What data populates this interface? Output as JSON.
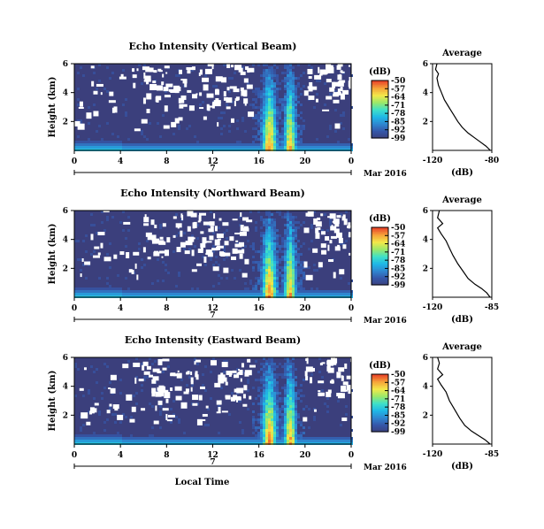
{
  "colors": {
    "background": "#3b3f7c",
    "colormap": [
      "#3b3f7c",
      "#3556a8",
      "#2f86d0",
      "#1fb8e6",
      "#3fe0c8",
      "#9ae86a",
      "#f2e84a",
      "#f6a43a",
      "#e8452a"
    ]
  },
  "figure": {
    "date_label": "Mar 2016",
    "day_label": "7",
    "xlabel_bottom": "Local Time"
  },
  "chart_data": [
    {
      "type": "heatmap",
      "title": "Echo Intensity (Vertical Beam)",
      "ylabel": "Height (km)",
      "xlabel": "",
      "x_ticks": [
        "0",
        "4",
        "8",
        "12",
        "16",
        "20",
        "0"
      ],
      "y_ticks": [
        "2",
        "4",
        "6"
      ],
      "xlim": [
        0,
        24
      ],
      "ylim": [
        0,
        6
      ],
      "colorbar": {
        "unit": "(dB)",
        "ticks": [
          "-50",
          "-57",
          "-64",
          "-71",
          "-78",
          "-85",
          "-92",
          "-99"
        ],
        "range": [
          -99,
          -50
        ]
      },
      "profile": {
        "title": "Average",
        "xlabel": "(dB)",
        "x_ticks": [
          "-120",
          "-80"
        ],
        "xlim": [
          -120,
          -80
        ],
        "y_ticks": [
          "2",
          "4",
          "6"
        ],
        "ylim": [
          0,
          6
        ],
        "points": [
          [
            -81,
            0.0
          ],
          [
            -84,
            0.3
          ],
          [
            -88,
            0.6
          ],
          [
            -92,
            0.9
          ],
          [
            -96,
            1.2
          ],
          [
            -100,
            1.6
          ],
          [
            -103,
            2.0
          ],
          [
            -106,
            2.5
          ],
          [
            -109,
            3.0
          ],
          [
            -112,
            3.5
          ],
          [
            -114,
            4.0
          ],
          [
            -116,
            4.5
          ],
          [
            -117,
            5.0
          ],
          [
            -116,
            5.3
          ],
          [
            -118,
            5.6
          ],
          [
            -117,
            6.0
          ]
        ]
      }
    },
    {
      "type": "heatmap",
      "title": "Echo Intensity (Northward Beam)",
      "ylabel": "Height (km)",
      "xlabel": "",
      "x_ticks": [
        "0",
        "4",
        "8",
        "12",
        "16",
        "20",
        "0"
      ],
      "y_ticks": [
        "2",
        "4",
        "6"
      ],
      "xlim": [
        0,
        24
      ],
      "ylim": [
        0,
        6
      ],
      "colorbar": {
        "unit": "(dB)",
        "ticks": [
          "-50",
          "-57",
          "-64",
          "-71",
          "-78",
          "-85",
          "-92",
          "-99"
        ],
        "range": [
          -99,
          -50
        ]
      },
      "profile": {
        "title": "Average",
        "xlabel": "(dB)",
        "x_ticks": [
          "-120",
          "-85"
        ],
        "xlim": [
          -120,
          -85
        ],
        "y_ticks": [
          "2",
          "4",
          "6"
        ],
        "ylim": [
          0,
          6
        ],
        "points": [
          [
            -86,
            0.0
          ],
          [
            -88,
            0.3
          ],
          [
            -91,
            0.6
          ],
          [
            -95,
            0.9
          ],
          [
            -99,
            1.3
          ],
          [
            -102,
            1.8
          ],
          [
            -105,
            2.3
          ],
          [
            -108,
            2.9
          ],
          [
            -110,
            3.4
          ],
          [
            -112,
            3.9
          ],
          [
            -115,
            4.4
          ],
          [
            -117,
            4.8
          ],
          [
            -114,
            5.1
          ],
          [
            -117,
            5.5
          ],
          [
            -116,
            6.0
          ]
        ]
      }
    },
    {
      "type": "heatmap",
      "title": "Echo Intensity (Eastward Beam)",
      "ylabel": "Height (km)",
      "xlabel": "Local Time",
      "x_ticks": [
        "0",
        "4",
        "8",
        "12",
        "16",
        "20",
        "0"
      ],
      "y_ticks": [
        "2",
        "4",
        "6"
      ],
      "xlim": [
        0,
        24
      ],
      "ylim": [
        0,
        6
      ],
      "colorbar": {
        "unit": "(dB)",
        "ticks": [
          "-50",
          "-57",
          "-64",
          "-71",
          "-78",
          "-85",
          "-92",
          "-99"
        ],
        "range": [
          -99,
          -50
        ]
      },
      "profile": {
        "title": "Average",
        "xlabel": "(dB)",
        "x_ticks": [
          "-120",
          "-85"
        ],
        "xlim": [
          -120,
          -85
        ],
        "y_ticks": [
          "2",
          "4",
          "6"
        ],
        "ylim": [
          0,
          6
        ],
        "points": [
          [
            -86,
            0.0
          ],
          [
            -89,
            0.3
          ],
          [
            -93,
            0.6
          ],
          [
            -97,
            0.9
          ],
          [
            -101,
            1.3
          ],
          [
            -104,
            1.8
          ],
          [
            -107,
            2.4
          ],
          [
            -110,
            3.0
          ],
          [
            -112,
            3.6
          ],
          [
            -115,
            4.1
          ],
          [
            -117,
            4.5
          ],
          [
            -114,
            4.8
          ],
          [
            -117,
            5.2
          ],
          [
            -116,
            5.6
          ],
          [
            -117,
            6.0
          ]
        ]
      }
    }
  ]
}
